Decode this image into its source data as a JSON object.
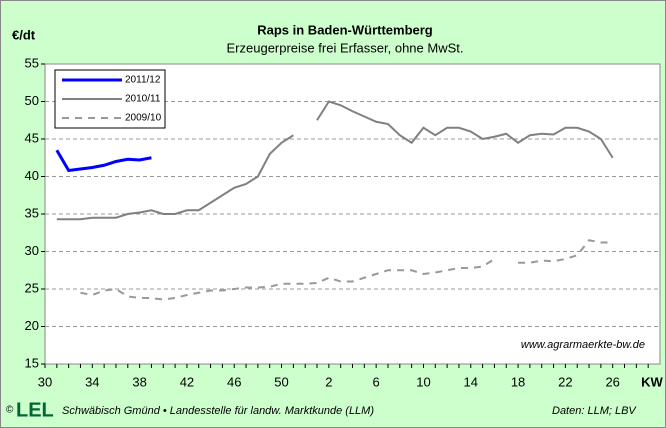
{
  "chart_data": {
    "type": "line",
    "title": "Raps in Baden-Württemberg",
    "subtitle": "Erzeugerpreise frei Erfasser, ohne MwSt.",
    "y_label": "€/dt",
    "x_label": "KW",
    "annotations": [
      "www.agrarmaerkte-bw.de"
    ],
    "footer": {
      "copyright": "©",
      "logo": "LEL",
      "text": "Schwäbisch Gmünd • Landesstelle für landw. Marktkunde (LLM)",
      "source": "Daten: LLM; LBV"
    },
    "categories": [
      "30",
      null,
      null,
      null,
      "34",
      null,
      null,
      null,
      "38",
      null,
      null,
      null,
      "42",
      null,
      null,
      null,
      "46",
      null,
      null,
      null,
      "50",
      null,
      null,
      null,
      "2",
      null,
      null,
      null,
      "6",
      null,
      null,
      null,
      "10",
      null,
      null,
      null,
      "14",
      null,
      null,
      null,
      "18",
      null,
      null,
      null,
      "22",
      null,
      null,
      null,
      "26",
      null,
      null,
      null
    ],
    "series": [
      {
        "name": "2011/12",
        "color": "#0000ff",
        "style": "solid",
        "width": 3,
        "values": [
          null,
          43.5,
          40.8,
          41.0,
          41.2,
          41.5,
          42.0,
          42.3,
          42.2,
          42.5,
          null,
          null,
          null,
          null,
          null,
          null,
          null,
          null,
          null,
          null,
          null,
          null,
          null,
          null,
          null,
          null,
          null,
          null,
          null,
          null,
          null,
          null,
          null,
          null,
          null,
          null,
          null,
          null,
          null,
          null,
          null,
          null,
          null,
          null,
          null,
          null,
          null,
          null,
          null,
          null,
          null,
          null
        ]
      },
      {
        "name": "2010/11",
        "color": "#808080",
        "style": "solid",
        "width": 2,
        "values": [
          null,
          34.3,
          34.3,
          34.3,
          34.5,
          34.5,
          34.5,
          35.0,
          35.2,
          35.5,
          35.0,
          35.0,
          35.5,
          35.5,
          36.5,
          37.5,
          38.5,
          39.0,
          40.0,
          43.0,
          44.5,
          45.5,
          null,
          47.5,
          50.0,
          49.5,
          48.7,
          48.0,
          47.3,
          47.0,
          45.5,
          44.5,
          46.5,
          45.5,
          46.5,
          46.5,
          46.0,
          45.0,
          45.3,
          45.7,
          44.5,
          45.5,
          45.7,
          45.6,
          46.5,
          46.5,
          46.0,
          45.0,
          42.5,
          null,
          null,
          null
        ]
      },
      {
        "name": "2009/10",
        "color": "#999999",
        "style": "dashed",
        "width": 2,
        "values": [
          null,
          null,
          null,
          24.5,
          24.2,
          24.8,
          25.0,
          24.0,
          23.8,
          23.8,
          23.6,
          23.8,
          24.2,
          24.5,
          24.8,
          24.8,
          25.0,
          25.2,
          25.2,
          25.3,
          25.7,
          25.7,
          25.7,
          25.8,
          26.5,
          26.0,
          26.0,
          26.5,
          27.0,
          27.5,
          27.5,
          27.5,
          27.0,
          27.2,
          27.5,
          27.8,
          27.8,
          28.0,
          29.0,
          null,
          28.5,
          28.5,
          28.8,
          28.7,
          29.0,
          29.5,
          31.5,
          31.2,
          31.2,
          null,
          null,
          null
        ]
      }
    ],
    "ylim": [
      15,
      55
    ],
    "yticks": [
      15,
      20,
      25,
      30,
      35,
      40,
      45,
      50,
      55
    ],
    "grid": true,
    "legend": "upper left",
    "background": "#ccffcc",
    "plot_background": "#ffffff"
  }
}
